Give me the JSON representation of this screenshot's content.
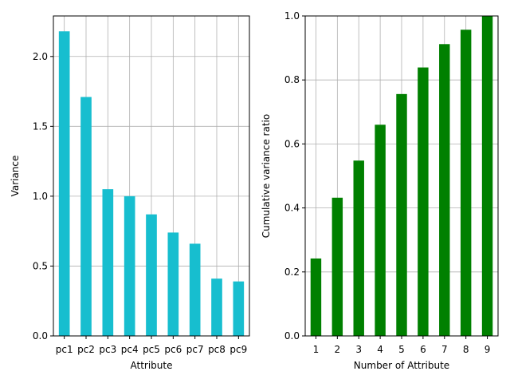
{
  "chart_data": [
    {
      "type": "bar",
      "xlabel": "Attribute",
      "ylabel": "Variance",
      "categories": [
        "pc1",
        "pc2",
        "pc3",
        "pc4",
        "pc5",
        "pc6",
        "pc7",
        "pc8",
        "pc9"
      ],
      "values": [
        2.18,
        1.71,
        1.05,
        1.0,
        0.87,
        0.74,
        0.66,
        0.41,
        0.39
      ],
      "ylim": [
        0,
        2.29
      ],
      "yticks": [
        0.0,
        0.5,
        1.0,
        1.5,
        2.0
      ],
      "ytick_labels": [
        "0.0",
        "0.5",
        "1.0",
        "1.5",
        "2.0"
      ],
      "grid": true,
      "color": "#17becf"
    },
    {
      "type": "bar",
      "xlabel": "Number of Attribute",
      "ylabel": "Cumulative variance ratio",
      "categories": [
        "1",
        "2",
        "3",
        "4",
        "5",
        "6",
        "7",
        "8",
        "9"
      ],
      "values": [
        0.242,
        0.432,
        0.548,
        0.66,
        0.756,
        0.839,
        0.912,
        0.957,
        1.0
      ],
      "ylim": [
        0,
        1.0
      ],
      "yticks": [
        0.0,
        0.2,
        0.4,
        0.6,
        0.8,
        1.0
      ],
      "ytick_labels": [
        "0.0",
        "0.2",
        "0.4",
        "0.6",
        "0.8",
        "1.0"
      ],
      "grid": true,
      "color": "#008000"
    }
  ]
}
